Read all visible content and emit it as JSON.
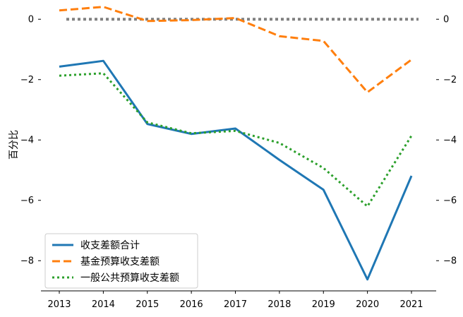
{
  "chart_data": {
    "type": "line",
    "title": "",
    "xlabel": "",
    "ylabel": "百分比",
    "x": [
      "2013",
      "2014",
      "2015",
      "2016",
      "2017",
      "2018",
      "2019",
      "2020",
      "2021"
    ],
    "ylim": [
      -9.0,
      0.45
    ],
    "yticks": [
      0,
      -2,
      -4,
      -6,
      -8
    ],
    "ytick_labels": [
      "0",
      "−2",
      "−4",
      "−6",
      "−8"
    ],
    "secondary_yticks": [
      0,
      -2,
      -4,
      -6,
      -8
    ],
    "secondary_ytick_labels": [
      "0",
      "−2",
      "−4",
      "−6",
      "−8"
    ],
    "grid": false,
    "legend_position": "bottom-left",
    "zero_reference_line": {
      "value": 0,
      "color": "#808080",
      "style": "dotted"
    },
    "series": [
      {
        "name": "收支差额合计",
        "color": "#1f77b4",
        "style": "solid",
        "values": [
          -1.57,
          -1.38,
          -3.47,
          -3.8,
          -3.62,
          -4.66,
          -5.65,
          -8.62,
          -5.19
        ]
      },
      {
        "name": "基金预算收支差额",
        "color": "#ff7f0e",
        "style": "dashed",
        "values": [
          0.29,
          0.41,
          -0.06,
          -0.03,
          0.04,
          -0.56,
          -0.72,
          -2.42,
          -1.34
        ]
      },
      {
        "name": "一般公共预算收支差额",
        "color": "#2ca02c",
        "style": "dotted",
        "values": [
          -1.87,
          -1.79,
          -3.42,
          -3.78,
          -3.7,
          -4.1,
          -4.93,
          -6.2,
          -3.86
        ]
      }
    ]
  }
}
